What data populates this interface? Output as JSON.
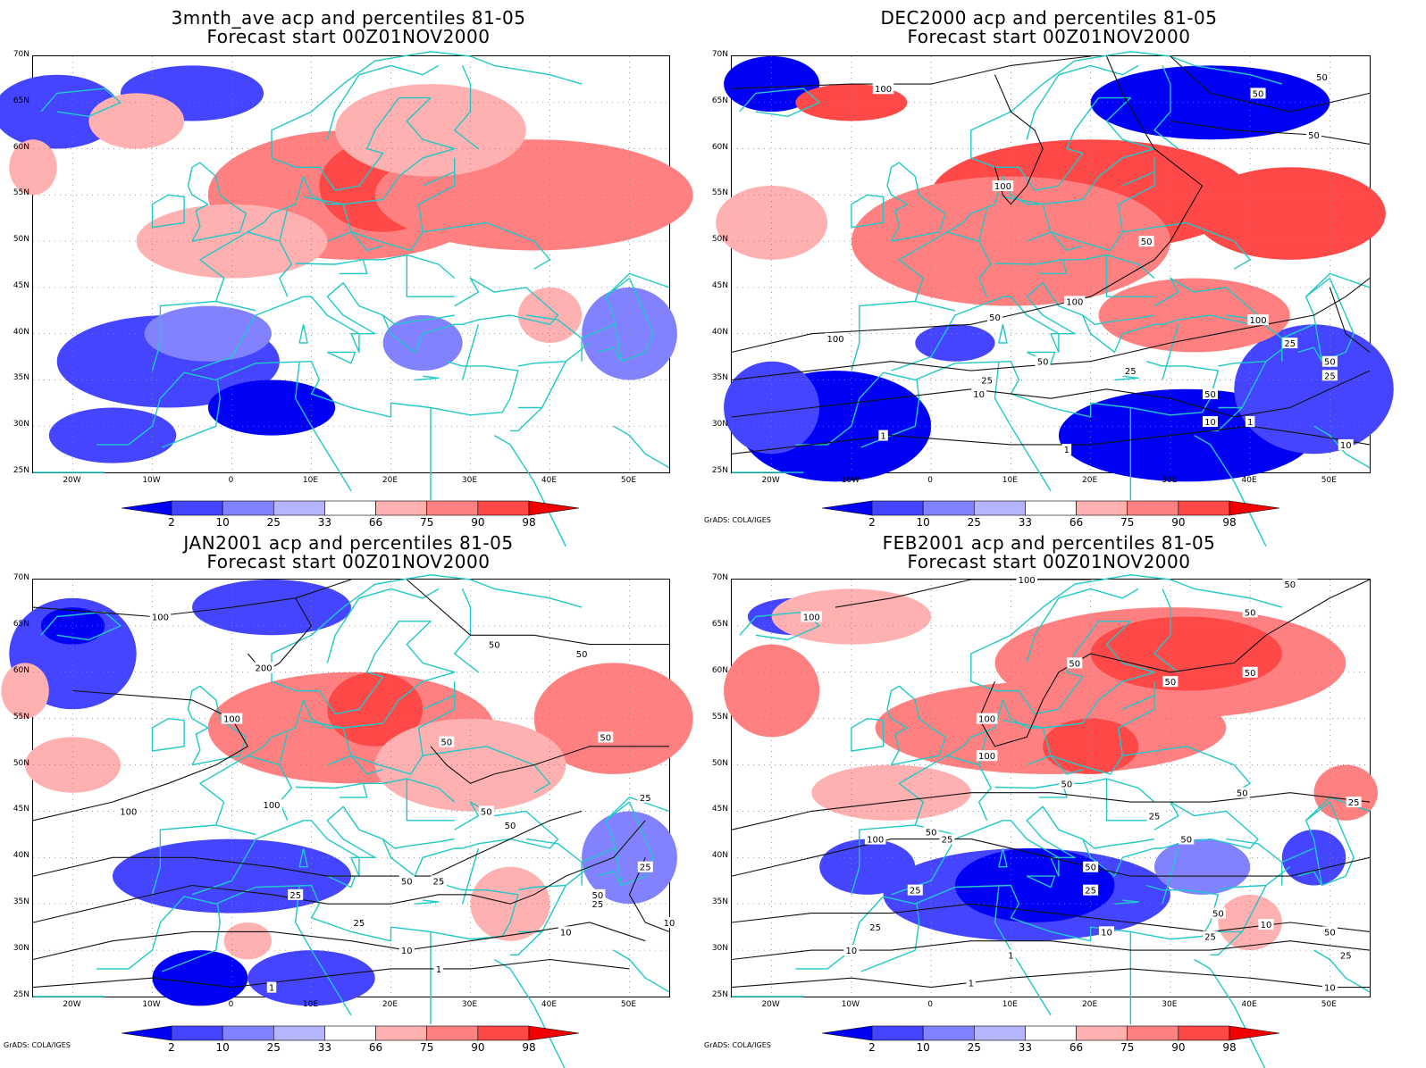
{
  "panels": [
    {
      "id": "p1",
      "title_line1": "3mnth_ave acp and percentiles 81-05",
      "title_line2": "Forecast start 00Z01NOV2000",
      "credit": "",
      "has_contours": false,
      "blobs": [
        {
          "lon": -8,
          "lat": 37,
          "rx": 14,
          "ry": 5,
          "level": 1
        },
        {
          "lon": -3,
          "lat": 40,
          "rx": 8,
          "ry": 3,
          "level": 2
        },
        {
          "lon": 5,
          "lat": 32,
          "rx": 8,
          "ry": 3,
          "level": 0
        },
        {
          "lon": -15,
          "lat": 29,
          "rx": 8,
          "ry": 3,
          "level": 1
        },
        {
          "lon": 24,
          "lat": 39,
          "rx": 5,
          "ry": 3,
          "level": 2
        },
        {
          "lon": 50,
          "lat": 40,
          "rx": 6,
          "ry": 5,
          "level": 2
        },
        {
          "lon": -22,
          "lat": 64,
          "rx": 8,
          "ry": 4,
          "level": 1
        },
        {
          "lon": -5,
          "lat": 66,
          "rx": 9,
          "ry": 3,
          "level": 1
        },
        {
          "lon": 15,
          "lat": 55,
          "rx": 18,
          "ry": 7,
          "level": 5
        },
        {
          "lon": 19,
          "lat": 56,
          "rx": 8,
          "ry": 5,
          "level": 6
        },
        {
          "lon": 38,
          "lat": 55,
          "rx": 20,
          "ry": 6,
          "level": 5
        },
        {
          "lon": 0,
          "lat": 50,
          "rx": 12,
          "ry": 4,
          "level": 4
        },
        {
          "lon": 25,
          "lat": 62,
          "rx": 12,
          "ry": 5,
          "level": 4
        },
        {
          "lon": -12,
          "lat": 63,
          "rx": 6,
          "ry": 3,
          "level": 4
        },
        {
          "lon": 40,
          "lat": 42,
          "rx": 4,
          "ry": 3,
          "level": 4
        },
        {
          "lon": -25,
          "lat": 58,
          "rx": 3,
          "ry": 3,
          "level": 4
        }
      ],
      "contour_labels": []
    },
    {
      "id": "p2",
      "title_line1": "DEC2000 acp and percentiles 81-05",
      "title_line2": "Forecast start 00Z01NOV2000",
      "credit": "GrADS: COLA/IGES",
      "has_contours": true,
      "blobs": [
        {
          "lon": -12,
          "lat": 30,
          "rx": 12,
          "ry": 6,
          "level": 0
        },
        {
          "lon": -20,
          "lat": 32,
          "rx": 6,
          "ry": 5,
          "level": 1
        },
        {
          "lon": 32,
          "lat": 29,
          "rx": 16,
          "ry": 5,
          "level": 0
        },
        {
          "lon": 48,
          "lat": 34,
          "rx": 10,
          "ry": 7,
          "level": 1
        },
        {
          "lon": 35,
          "lat": 65,
          "rx": 15,
          "ry": 4,
          "level": 0
        },
        {
          "lon": -20,
          "lat": 67,
          "rx": 6,
          "ry": 3,
          "level": 0
        },
        {
          "lon": 3,
          "lat": 39,
          "rx": 5,
          "ry": 2,
          "level": 1
        },
        {
          "lon": 20,
          "lat": 55,
          "rx": 20,
          "ry": 6,
          "level": 6
        },
        {
          "lon": 45,
          "lat": 53,
          "rx": 12,
          "ry": 5,
          "level": 6
        },
        {
          "lon": 10,
          "lat": 50,
          "rx": 20,
          "ry": 7,
          "level": 5
        },
        {
          "lon": 33,
          "lat": 42,
          "rx": 12,
          "ry": 4,
          "level": 5
        },
        {
          "lon": -10,
          "lat": 65,
          "rx": 7,
          "ry": 2,
          "level": 6
        },
        {
          "lon": -20,
          "lat": 52,
          "rx": 7,
          "ry": 4,
          "level": 4
        }
      ],
      "contour_labels": [
        {
          "lon": -6,
          "lat": 66.5,
          "text": "100"
        },
        {
          "lon": 9,
          "lat": 56,
          "text": "100"
        },
        {
          "lon": 41,
          "lat": 66,
          "text": "50"
        },
        {
          "lon": 49,
          "lat": 67.8,
          "text": "50"
        },
        {
          "lon": 48,
          "lat": 61.5,
          "text": "50"
        },
        {
          "lon": 27,
          "lat": 50,
          "text": "50"
        },
        {
          "lon": 18,
          "lat": 43.5,
          "text": "100"
        },
        {
          "lon": 8,
          "lat": 41.8,
          "text": "50"
        },
        {
          "lon": -12,
          "lat": 39.5,
          "text": "100"
        },
        {
          "lon": 41,
          "lat": 41.5,
          "text": "100"
        },
        {
          "lon": 14,
          "lat": 37,
          "text": "50"
        },
        {
          "lon": 25,
          "lat": 36,
          "text": "25"
        },
        {
          "lon": 45,
          "lat": 39,
          "text": "25"
        },
        {
          "lon": 35,
          "lat": 33.5,
          "text": "50"
        },
        {
          "lon": 7,
          "lat": 35,
          "text": "25"
        },
        {
          "lon": 6,
          "lat": 33.5,
          "text": "10"
        },
        {
          "lon": 35,
          "lat": 30.5,
          "text": "10"
        },
        {
          "lon": -6,
          "lat": 29,
          "text": "1"
        },
        {
          "lon": 17,
          "lat": 27.5,
          "text": "1"
        },
        {
          "lon": 40,
          "lat": 30.5,
          "text": "1"
        },
        {
          "lon": 52,
          "lat": 28,
          "text": "10"
        },
        {
          "lon": 50,
          "lat": 37,
          "text": "50"
        },
        {
          "lon": 50,
          "lat": 35.5,
          "text": "25"
        }
      ]
    },
    {
      "id": "p3",
      "title_line1": "JAN2001 acp and percentiles 81-05",
      "title_line2": "Forecast start 00Z01NOV2000",
      "credit": "GrADS: COLA/IGES",
      "has_contours": true,
      "blobs": [
        {
          "lon": 0,
          "lat": 38,
          "rx": 15,
          "ry": 4,
          "level": 1
        },
        {
          "lon": -4,
          "lat": 27,
          "rx": 6,
          "ry": 3,
          "level": 0
        },
        {
          "lon": 10,
          "lat": 27,
          "rx": 8,
          "ry": 3,
          "level": 1
        },
        {
          "lon": -20,
          "lat": 62,
          "rx": 8,
          "ry": 6,
          "level": 1
        },
        {
          "lon": -20,
          "lat": 65,
          "rx": 4,
          "ry": 2,
          "level": 0
        },
        {
          "lon": 5,
          "lat": 67,
          "rx": 10,
          "ry": 3,
          "level": 1
        },
        {
          "lon": 50,
          "lat": 40,
          "rx": 6,
          "ry": 5,
          "level": 2
        },
        {
          "lon": 15,
          "lat": 54,
          "rx": 18,
          "ry": 6,
          "level": 5
        },
        {
          "lon": 18,
          "lat": 56,
          "rx": 6,
          "ry": 4,
          "level": 6
        },
        {
          "lon": 48,
          "lat": 55,
          "rx": 10,
          "ry": 6,
          "level": 5
        },
        {
          "lon": 30,
          "lat": 50,
          "rx": 12,
          "ry": 5,
          "level": 4
        },
        {
          "lon": 35,
          "lat": 35,
          "rx": 5,
          "ry": 4,
          "level": 4
        },
        {
          "lon": -20,
          "lat": 50,
          "rx": 6,
          "ry": 3,
          "level": 4
        },
        {
          "lon": -26,
          "lat": 58,
          "rx": 3,
          "ry": 3,
          "level": 4
        },
        {
          "lon": 2,
          "lat": 31,
          "rx": 3,
          "ry": 2,
          "level": 4
        }
      ],
      "contour_labels": [
        {
          "lon": -9,
          "lat": 66,
          "text": "100"
        },
        {
          "lon": 4,
          "lat": 60.5,
          "text": "200"
        },
        {
          "lon": 0,
          "lat": 55,
          "text": "100"
        },
        {
          "lon": 33,
          "lat": 63,
          "text": "50"
        },
        {
          "lon": 44,
          "lat": 62,
          "text": "50"
        },
        {
          "lon": 27,
          "lat": 52.5,
          "text": "50"
        },
        {
          "lon": 47,
          "lat": 53,
          "text": "50"
        },
        {
          "lon": -13,
          "lat": 45,
          "text": "100"
        },
        {
          "lon": 5,
          "lat": 45.7,
          "text": "100"
        },
        {
          "lon": 32,
          "lat": 45,
          "text": "50"
        },
        {
          "lon": 35,
          "lat": 43.5,
          "text": "50"
        },
        {
          "lon": 52,
          "lat": 46.5,
          "text": "25"
        },
        {
          "lon": 22,
          "lat": 37.5,
          "text": "50"
        },
        {
          "lon": 26,
          "lat": 37.5,
          "text": "25"
        },
        {
          "lon": 8,
          "lat": 36,
          "text": "25"
        },
        {
          "lon": 16,
          "lat": 33,
          "text": "25"
        },
        {
          "lon": 46,
          "lat": 36,
          "text": "50"
        },
        {
          "lon": 46,
          "lat": 35,
          "text": "25"
        },
        {
          "lon": 42,
          "lat": 32,
          "text": "10"
        },
        {
          "lon": 22,
          "lat": 30,
          "text": "10"
        },
        {
          "lon": 26,
          "lat": 28,
          "text": "1"
        },
        {
          "lon": 5,
          "lat": 26,
          "text": "1"
        },
        {
          "lon": 52,
          "lat": 39,
          "text": "25"
        },
        {
          "lon": 55,
          "lat": 33,
          "text": "10"
        }
      ]
    },
    {
      "id": "p4",
      "title_line1": "FEB2001 acp and percentiles 81-05",
      "title_line2": "Forecast start 00Z01NOV2000",
      "credit": "GrADS: COLA/IGES",
      "has_contours": true,
      "blobs": [
        {
          "lon": 12,
          "lat": 36,
          "rx": 18,
          "ry": 5,
          "level": 1
        },
        {
          "lon": 13,
          "lat": 37,
          "rx": 10,
          "ry": 4,
          "level": 0
        },
        {
          "lon": -8,
          "lat": 39,
          "rx": 6,
          "ry": 3,
          "level": 1
        },
        {
          "lon": 34,
          "lat": 39,
          "rx": 6,
          "ry": 3,
          "level": 2
        },
        {
          "lon": 48,
          "lat": 40,
          "rx": 4,
          "ry": 3,
          "level": 1
        },
        {
          "lon": -17,
          "lat": 66,
          "rx": 6,
          "ry": 2,
          "level": 1
        },
        {
          "lon": 30,
          "lat": 61,
          "rx": 22,
          "ry": 6,
          "level": 5
        },
        {
          "lon": 32,
          "lat": 62,
          "rx": 12,
          "ry": 4,
          "level": 6
        },
        {
          "lon": 15,
          "lat": 54,
          "rx": 22,
          "ry": 5,
          "level": 5
        },
        {
          "lon": 20,
          "lat": 52,
          "rx": 6,
          "ry": 3,
          "level": 6
        },
        {
          "lon": -20,
          "lat": 58,
          "rx": 6,
          "ry": 5,
          "level": 5
        },
        {
          "lon": -10,
          "lat": 66,
          "rx": 10,
          "ry": 3,
          "level": 4
        },
        {
          "lon": 52,
          "lat": 47,
          "rx": 4,
          "ry": 3,
          "level": 5
        },
        {
          "lon": 40,
          "lat": 33,
          "rx": 4,
          "ry": 3,
          "level": 4
        },
        {
          "lon": -5,
          "lat": 47,
          "rx": 10,
          "ry": 3,
          "level": 4
        }
      ],
      "contour_labels": [
        {
          "lon": -15,
          "lat": 66,
          "text": "100"
        },
        {
          "lon": 12,
          "lat": 70,
          "text": "100"
        },
        {
          "lon": 45,
          "lat": 69.5,
          "text": "50"
        },
        {
          "lon": 40,
          "lat": 66.5,
          "text": "50"
        },
        {
          "lon": 18,
          "lat": 61,
          "text": "50"
        },
        {
          "lon": 30,
          "lat": 59,
          "text": "50"
        },
        {
          "lon": 40,
          "lat": 60,
          "text": "50"
        },
        {
          "lon": 7,
          "lat": 55,
          "text": "100"
        },
        {
          "lon": 7,
          "lat": 51,
          "text": "100"
        },
        {
          "lon": 17,
          "lat": 48,
          "text": "50"
        },
        {
          "lon": 28,
          "lat": 44.5,
          "text": "25"
        },
        {
          "lon": 32,
          "lat": 42,
          "text": "50"
        },
        {
          "lon": 39,
          "lat": 47,
          "text": "50"
        },
        {
          "lon": 53,
          "lat": 46,
          "text": "25"
        },
        {
          "lon": -7,
          "lat": 42,
          "text": "100"
        },
        {
          "lon": 0,
          "lat": 42.8,
          "text": "50"
        },
        {
          "lon": 2,
          "lat": 42,
          "text": "25"
        },
        {
          "lon": 20,
          "lat": 39,
          "text": "50"
        },
        {
          "lon": 20,
          "lat": 36.5,
          "text": "25"
        },
        {
          "lon": -2,
          "lat": 36.5,
          "text": "25"
        },
        {
          "lon": -7,
          "lat": 32.5,
          "text": "25"
        },
        {
          "lon": -10,
          "lat": 30,
          "text": "10"
        },
        {
          "lon": 22,
          "lat": 32,
          "text": "10"
        },
        {
          "lon": 35,
          "lat": 31.5,
          "text": "25"
        },
        {
          "lon": 36,
          "lat": 34,
          "text": "50"
        },
        {
          "lon": 42,
          "lat": 32.8,
          "text": "10"
        },
        {
          "lon": 50,
          "lat": 32,
          "text": "50"
        },
        {
          "lon": 52,
          "lat": 29.5,
          "text": "25"
        },
        {
          "lon": 10,
          "lat": 29.5,
          "text": "1"
        },
        {
          "lon": 5,
          "lat": 26.5,
          "text": "1"
        },
        {
          "lon": 50,
          "lat": 26,
          "text": "10"
        }
      ]
    }
  ],
  "lat_ticks": [
    "25N",
    "30N",
    "35N",
    "40N",
    "45N",
    "50N",
    "55N",
    "60N",
    "65N",
    "70N"
  ],
  "lon_ticks": [
    "20W",
    "10W",
    "0",
    "10E",
    "20E",
    "30E",
    "40E",
    "50E"
  ],
  "colorbar": {
    "labels": [
      "2",
      "10",
      "25",
      "33",
      "66",
      "75",
      "90",
      "98"
    ],
    "colors": [
      "#0000f5",
      "#4545ff",
      "#8282ff",
      "#b4b4ff",
      "#ffffff",
      "#ffb0b0",
      "#ff8080",
      "#ff4848",
      "#f00000"
    ]
  },
  "level_colors": [
    "#0000f5",
    "#4545ff",
    "#8282ff",
    "#b4b4ff",
    "#ffb0b0",
    "#ff8080",
    "#ff4848",
    "#f00000"
  ]
}
